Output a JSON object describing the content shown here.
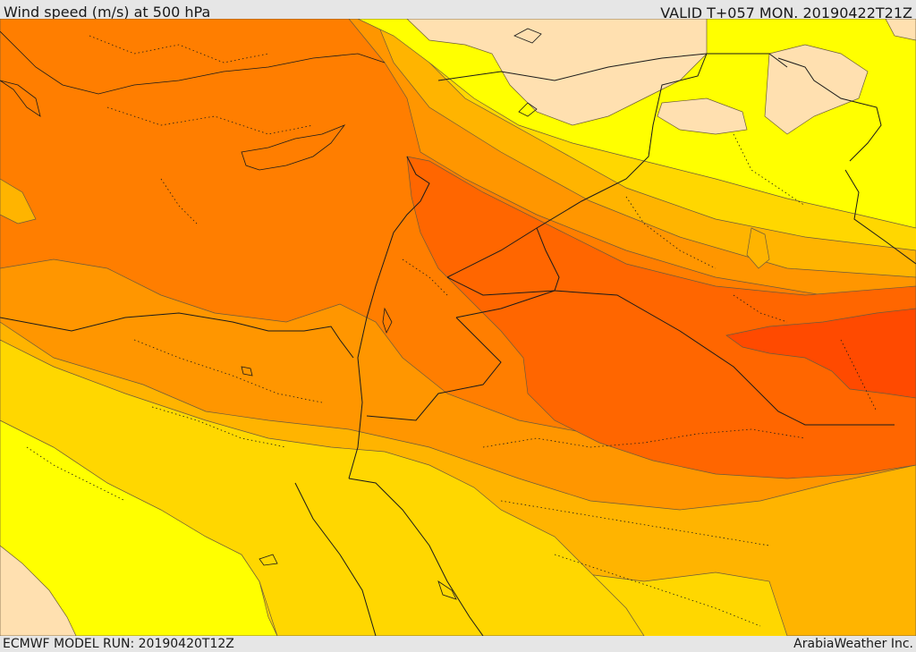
{
  "header": {
    "title": "Wind speed (m/s) at 500 hPa",
    "valid": "VALID T+057 MON. 20190422T21Z"
  },
  "footer": {
    "model_run": "ECMWF MODEL RUN: 20190420T12Z",
    "credit": "ArabiaWeather Inc."
  },
  "map": {
    "field": "wind-speed-500hPa",
    "fill_colors": [
      "#ffffff",
      "#ffe0b0",
      "#ffff00",
      "#ffd700",
      "#ffb400",
      "#ff9600",
      "#ff7e00",
      "#ff6600",
      "#ff4a00"
    ]
  }
}
